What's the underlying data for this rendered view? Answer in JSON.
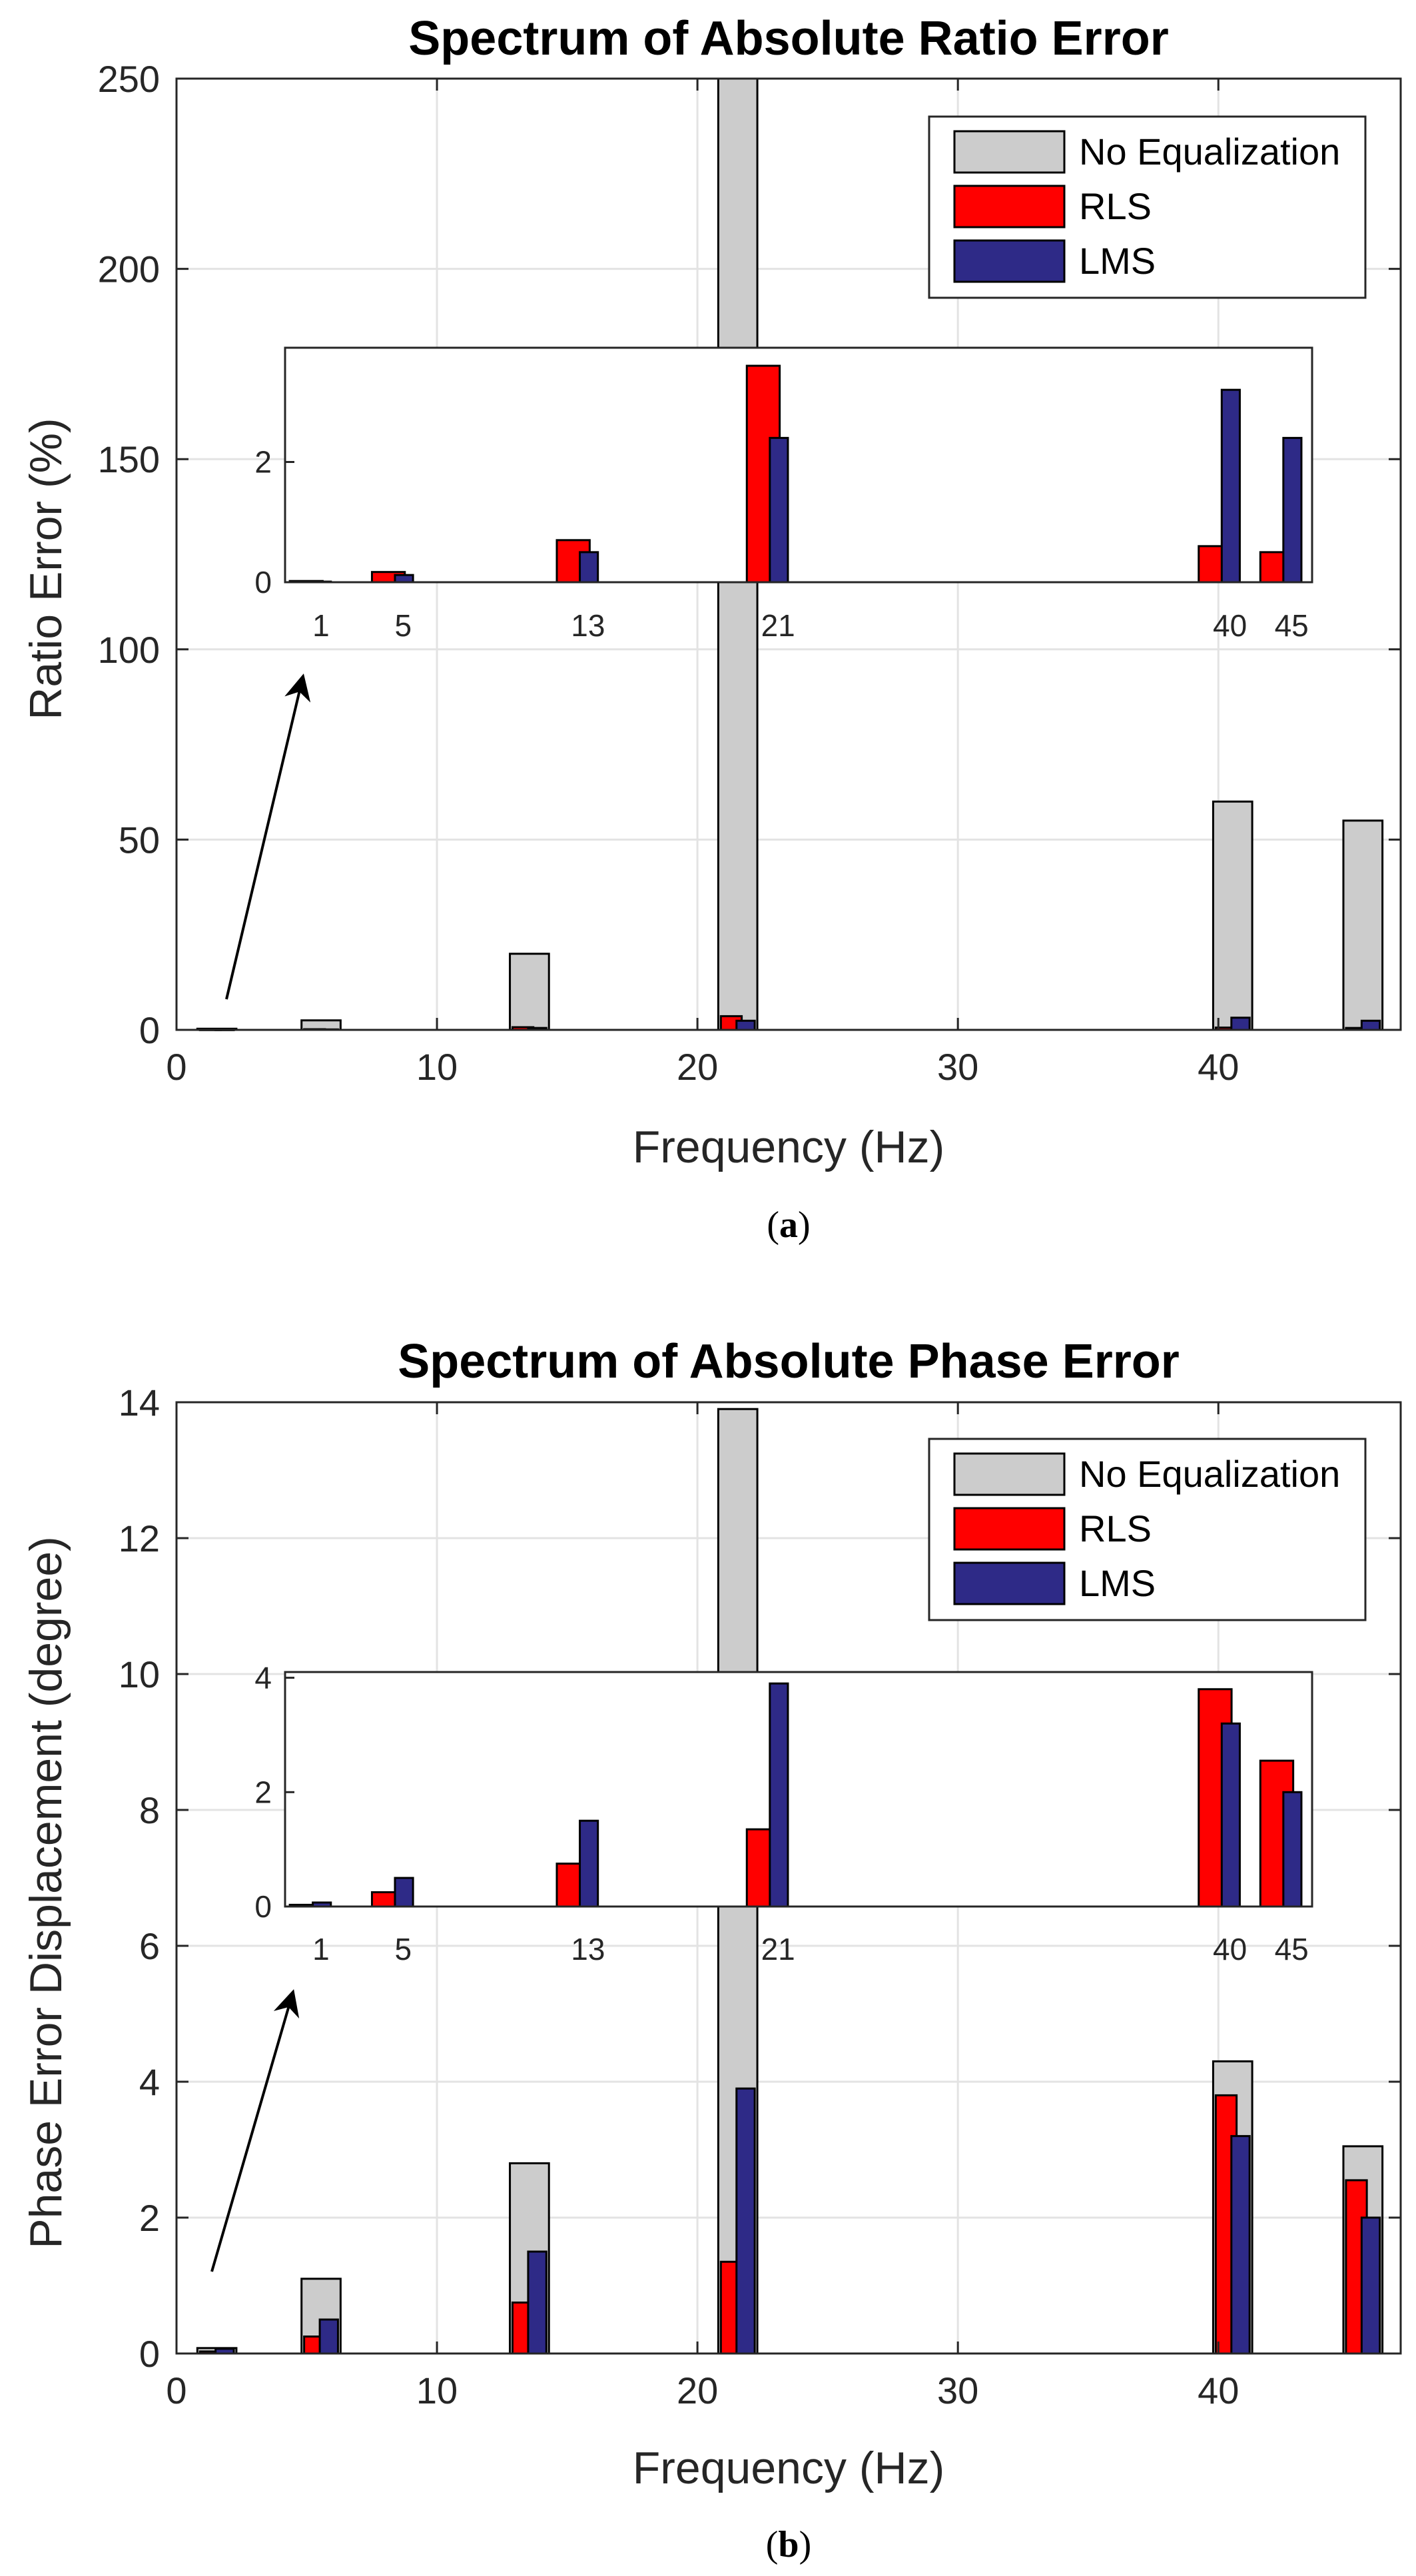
{
  "chart_data": [
    {
      "type": "bar",
      "title": "Spectrum of Absolute Ratio Error",
      "xlabel": "Frequency (Hz)",
      "ylabel": "Ratio Error (%)",
      "caption_letter": "a",
      "xlim": [
        0,
        47
      ],
      "ylim": [
        0,
        250
      ],
      "xticks": [
        0,
        10,
        20,
        30,
        40
      ],
      "yticks": [
        0,
        50,
        100,
        150,
        200,
        250
      ],
      "grid": true,
      "legend_position": "top-right",
      "categories": [
        1,
        5,
        13,
        21,
        40,
        45
      ],
      "series": [
        {
          "name": "No Equalization",
          "color": "#cccccc",
          "values": [
            0.3,
            2.5,
            20,
            250,
            60,
            55
          ]
        },
        {
          "name": "RLS",
          "color": "#ff0000",
          "values": [
            0.02,
            0.17,
            0.7,
            3.6,
            0.6,
            0.5
          ]
        },
        {
          "name": "LMS",
          "color": "#2e2a87",
          "values": [
            0.01,
            0.12,
            0.5,
            2.4,
            3.2,
            2.4
          ]
        }
      ],
      "inset": {
        "xtick_labels": [
          "1",
          "5",
          "13",
          "21",
          "40",
          "45"
        ],
        "ylim": [
          0,
          3.9
        ],
        "yticks": [
          0,
          2
        ]
      }
    },
    {
      "type": "bar",
      "title": "Spectrum of Absolute Phase Error",
      "xlabel": "Frequency (Hz)",
      "ylabel": "Phase Error Displacement (degree)",
      "caption_letter": "b",
      "xlim": [
        0,
        47
      ],
      "ylim": [
        0,
        14
      ],
      "xticks": [
        0,
        10,
        20,
        30,
        40
      ],
      "yticks": [
        0,
        2,
        4,
        6,
        8,
        10,
        12,
        14
      ],
      "grid": true,
      "legend_position": "top-right",
      "categories": [
        1,
        5,
        13,
        21,
        40,
        45
      ],
      "series": [
        {
          "name": "No Equalization",
          "color": "#cccccc",
          "values": [
            0.08,
            1.1,
            2.8,
            13.9,
            4.3,
            3.05
          ]
        },
        {
          "name": "RLS",
          "color": "#ff0000",
          "values": [
            0.03,
            0.25,
            0.75,
            1.35,
            3.8,
            2.55
          ]
        },
        {
          "name": "LMS",
          "color": "#2e2a87",
          "values": [
            0.07,
            0.5,
            1.5,
            3.9,
            3.2,
            2.0
          ]
        }
      ],
      "inset": {
        "xtick_labels": [
          "1",
          "5",
          "13",
          "21",
          "40",
          "45"
        ],
        "ylim": [
          0,
          4.1
        ],
        "yticks": [
          0,
          2,
          4
        ]
      }
    }
  ]
}
